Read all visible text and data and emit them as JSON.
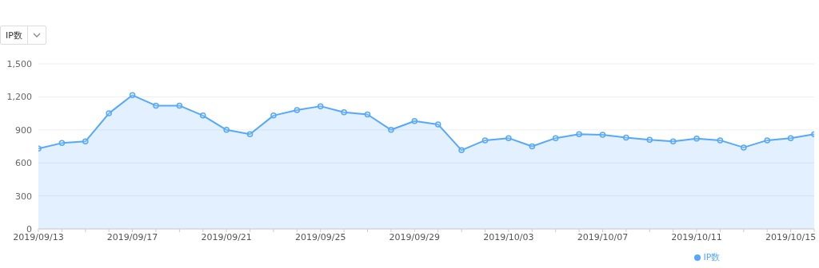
{
  "chart_data": {
    "type": "area",
    "annotations": [
      "IP数"
    ],
    "categories": [
      "2019/09/13",
      null,
      null,
      null,
      "2019/09/17",
      null,
      null,
      null,
      "2019/09/21",
      null,
      null,
      null,
      "2019/09/25",
      null,
      null,
      null,
      "2019/09/29",
      null,
      null,
      null,
      "2019/10/03",
      null,
      null,
      null,
      "2019/10/07",
      null,
      null,
      null,
      "2019/10/11",
      null,
      null,
      null,
      "2019/10/15",
      null
    ],
    "series": [
      {
        "name": "IP数",
        "color": "#55a8fd",
        "values": [
          730,
          780,
          795,
          1050,
          1215,
          1120,
          1120,
          1030,
          900,
          860,
          1030,
          1080,
          1115,
          1060,
          1040,
          900,
          980,
          950,
          715,
          805,
          825,
          750,
          825,
          860,
          855,
          830,
          810,
          795,
          820,
          805,
          740,
          805,
          825,
          860
        ]
      }
    ],
    "ylim": [
      0,
      1500
    ],
    "yticks": [
      0,
      {
        "value": 300,
        "label": "300"
      },
      {
        "value": 600,
        "label": "600"
      },
      {
        "value": 900,
        "label": "900"
      },
      {
        "value": 1200,
        "label": "1,200"
      },
      {
        "value": 1500,
        "label": "1,500"
      }
    ],
    "grid": "y",
    "legend": "bottom",
    "marker": "circle",
    "line_style": "solid"
  }
}
